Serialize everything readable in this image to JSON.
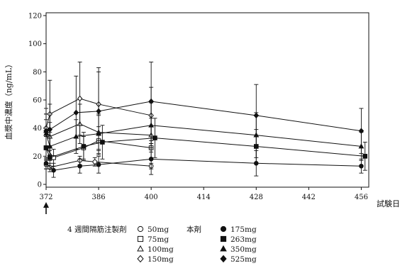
{
  "chart_data": {
    "type": "line",
    "title": "",
    "ylabel": "血漿中濃度（ng/mL）",
    "xlabel": "試験日",
    "xlim": [
      372,
      458
    ],
    "ylim": [
      -2,
      122
    ],
    "x_ticks": [
      372,
      386,
      400,
      414,
      428,
      442,
      456
    ],
    "y_ticks": [
      0,
      20,
      40,
      60,
      80,
      100,
      120
    ],
    "grid": false,
    "dose_marker": {
      "x": 372,
      "symbol": "↑"
    },
    "legend": {
      "group_labels": [
        "4 週間隔筋注製剤",
        "本剤"
      ],
      "placement": "bottom"
    },
    "series": [
      {
        "name": "50mg",
        "group": 0,
        "marker": "circle-open",
        "x": [
          372,
          373,
          381,
          385,
          400
        ],
        "y": [
          14,
          12,
          17,
          16,
          13
        ],
        "err": [
          3,
          3,
          3,
          3,
          2
        ]
      },
      {
        "name": "75mg",
        "group": 0,
        "marker": "square-open",
        "x": [
          372,
          374,
          382,
          386,
          400
        ],
        "y": [
          26,
          19,
          26,
          31,
          26
        ],
        "err": [
          8,
          6,
          8,
          10,
          8
        ]
      },
      {
        "name": "100mg",
        "group": 0,
        "marker": "triangle-open",
        "x": [
          372,
          373,
          381,
          386,
          400
        ],
        "y": [
          38,
          34,
          43,
          37,
          35
        ],
        "err": [
          12,
          10,
          14,
          12,
          12
        ]
      },
      {
        "name": "150mg",
        "group": 0,
        "marker": "diamond-open",
        "x": [
          372,
          373,
          381,
          386,
          400
        ],
        "y": [
          40,
          50,
          61,
          57,
          49
        ],
        "err": [
          14,
          24,
          26,
          26,
          20
        ]
      },
      {
        "name": "175mg",
        "group": 1,
        "marker": "circle-filled",
        "x": [
          372,
          374,
          381,
          386,
          400,
          428,
          456
        ],
        "y": [
          15,
          10,
          13,
          14,
          18,
          15,
          13
        ],
        "err": [
          4,
          5,
          5,
          6,
          11,
          9,
          5
        ]
      },
      {
        "name": "263mg",
        "group": 1,
        "marker": "square-filled",
        "x": [
          372,
          373,
          382,
          387,
          401,
          428,
          457
        ],
        "y": [
          26,
          19,
          27,
          30,
          33,
          27,
          20
        ],
        "err": [
          8,
          8,
          10,
          12,
          14,
          12,
          10
        ]
      },
      {
        "name": "350mg",
        "group": 1,
        "marker": "triangle-filled",
        "x": [
          372,
          373,
          380,
          386,
          400,
          428,
          456
        ],
        "y": [
          36,
          27,
          34,
          36,
          42,
          35,
          27
        ],
        "err": [
          10,
          10,
          12,
          14,
          16,
          16,
          10
        ]
      },
      {
        "name": "525mg",
        "group": 1,
        "marker": "diamond-filled",
        "x": [
          372,
          373,
          380,
          386,
          400,
          428,
          456
        ],
        "y": [
          38,
          39,
          51,
          52,
          59,
          49,
          38
        ],
        "err": [
          12,
          18,
          26,
          28,
          28,
          22,
          16
        ]
      }
    ]
  }
}
